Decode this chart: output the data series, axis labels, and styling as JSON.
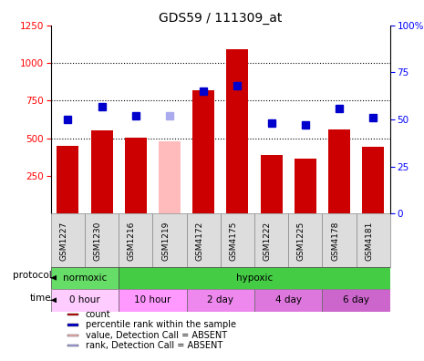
{
  "title": "GDS59 / 111309_at",
  "samples": [
    "GSM1227",
    "GSM1230",
    "GSM1216",
    "GSM1219",
    "GSM4172",
    "GSM4175",
    "GSM1222",
    "GSM1225",
    "GSM4178",
    "GSM4181"
  ],
  "bar_values": [
    450,
    555,
    505,
    480,
    820,
    1090,
    390,
    365,
    560,
    445
  ],
  "bar_colors": [
    "#cc0000",
    "#cc0000",
    "#cc0000",
    "#ffbbbb",
    "#cc0000",
    "#cc0000",
    "#cc0000",
    "#cc0000",
    "#cc0000",
    "#cc0000"
  ],
  "rank_values": [
    50,
    57,
    52,
    52,
    65,
    68,
    48,
    47,
    56,
    51
  ],
  "rank_colors": [
    "#0000cc",
    "#0000cc",
    "#0000cc",
    "#aaaaee",
    "#0000cc",
    "#0000cc",
    "#0000cc",
    "#0000cc",
    "#0000cc",
    "#0000cc"
  ],
  "ylim_left": [
    0,
    1250
  ],
  "ylim_right": [
    0,
    100
  ],
  "yticks_left": [
    250,
    500,
    750,
    1000,
    1250
  ],
  "yticks_right": [
    0,
    25,
    50,
    75,
    100
  ],
  "yticklabels_right": [
    "0",
    "25",
    "50",
    "75",
    "100%"
  ],
  "protocol_normoxic_color": "#66dd66",
  "protocol_hypoxic_color": "#44cc44",
  "time_colors": [
    "#ffccff",
    "#ff99ff",
    "#ee88ee",
    "#dd77dd",
    "#cc66cc"
  ],
  "time_labels": [
    "0 hour",
    "10 hour",
    "2 day",
    "4 day",
    "6 day"
  ],
  "legend_items": [
    {
      "label": "count",
      "color": "#cc0000"
    },
    {
      "label": "percentile rank within the sample",
      "color": "#0000cc"
    },
    {
      "label": "value, Detection Call = ABSENT",
      "color": "#ffbbbb"
    },
    {
      "label": "rank, Detection Call = ABSENT",
      "color": "#aaaaee"
    }
  ],
  "background_color": "#ffffff",
  "xlabel_box_color": "#dddddd"
}
